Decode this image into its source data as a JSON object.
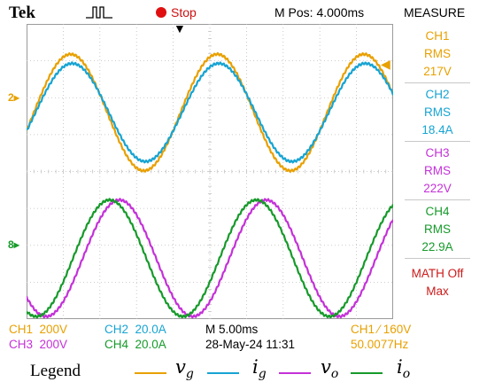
{
  "header": {
    "brand": "Tek",
    "trigger_icon": "pulse-trigger-icon",
    "run_state": "Stop",
    "position": "M Pos: 4.000ms",
    "panel_title": "MEASURE"
  },
  "screen": {
    "markers": {
      "ch1_ref": "2",
      "ch3_ref": "8",
      "trigger_position": "▼",
      "trigger_level": "◀"
    },
    "grid": {
      "divisions_x": 10,
      "divisions_y": 8
    }
  },
  "measurements": [
    {
      "channel": "CH1",
      "type": "RMS",
      "value": "217V",
      "color": "#e8a000"
    },
    {
      "channel": "CH2",
      "type": "RMS",
      "value": "18.4A",
      "color": "#17a4d2"
    },
    {
      "channel": "CH3",
      "type": "RMS",
      "value": "222V",
      "color": "#c431d8"
    },
    {
      "channel": "CH4",
      "type": "RMS",
      "value": "22.9A",
      "color": "#169a2a"
    },
    {
      "channel": "MATH Off",
      "type": "Max",
      "value": "",
      "color": "#cc1a1a"
    }
  ],
  "settings": {
    "ch1": {
      "label": "CH1",
      "scale": "200V",
      "color": "#e8a000"
    },
    "ch2": {
      "label": "CH2",
      "scale": "20.0A",
      "color": "#17a4d2"
    },
    "ch3": {
      "label": "CH3",
      "scale": "200V",
      "color": "#c431d8"
    },
    "ch4": {
      "label": "CH4",
      "scale": "20.0A",
      "color": "#169a2a"
    },
    "timebase": "M 5.00ms",
    "date": "28-May-24 11:31",
    "trigger": "CH1 ⁄ 160V",
    "frequency": "50.0077Hz"
  },
  "legend": {
    "label": "Legend",
    "items": [
      {
        "base": "v",
        "sub": "g",
        "color": "#e8a000"
      },
      {
        "base": "i",
        "sub": "g",
        "color": "#17a4d2"
      },
      {
        "base": "v",
        "sub": "o",
        "color": "#c431d8"
      },
      {
        "base": "i",
        "sub": "o",
        "color": "#169a2a"
      }
    ]
  },
  "waveforms": [
    {
      "name": "vg",
      "color": "#e8a000",
      "frequency_hz": 50,
      "amplitude_div": 1.58,
      "offset_div": 1.6,
      "phase_deg": 0
    },
    {
      "name": "ig",
      "color": "#17a4d2",
      "frequency_hz": 50,
      "amplitude_div": 1.33,
      "offset_div": 1.6,
      "phase_deg": -4
    },
    {
      "name": "vo",
      "color": "#c431d8",
      "frequency_hz": 50,
      "amplitude_div": 1.58,
      "offset_div": -2.35,
      "phase_deg": -120
    },
    {
      "name": "io",
      "color": "#169a2a",
      "frequency_hz": 50,
      "amplitude_div": 1.58,
      "offset_div": -2.35,
      "phase_deg": -96
    }
  ]
}
